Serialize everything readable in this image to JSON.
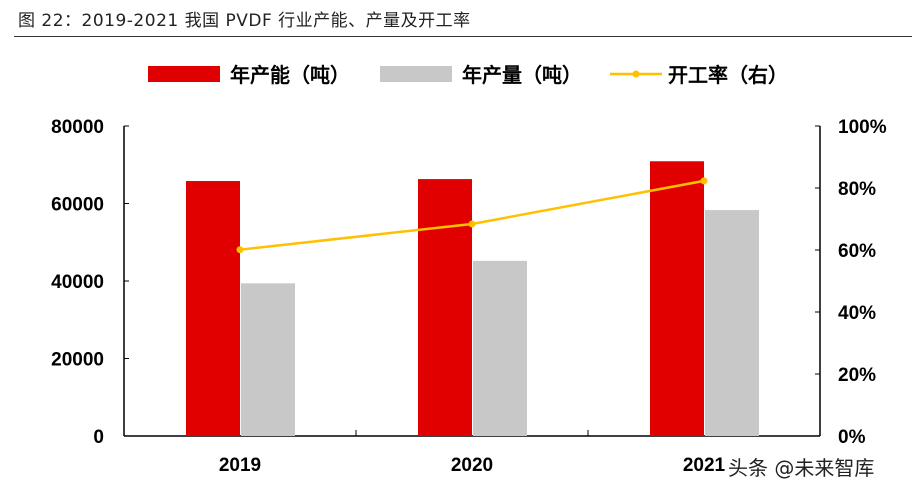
{
  "title": "图 22：2019-2021 我国 PVDF 行业产能、产量及开工率",
  "watermark": "头条 @未来智库",
  "chart_data": {
    "type": "bar",
    "categories": [
      "2019",
      "2020",
      "2021"
    ],
    "series": [
      {
        "name": "年产能（吨）",
        "type": "bar",
        "axis": "left",
        "color": "#E00000",
        "values": [
          65800,
          66300,
          70900
        ]
      },
      {
        "name": "年产量（吨）",
        "type": "bar",
        "axis": "left",
        "color": "#C8C8C8",
        "values": [
          39400,
          45200,
          58300
        ]
      },
      {
        "name": "开工率（右）",
        "type": "line",
        "axis": "right",
        "color": "#FFC000",
        "values": [
          60.1,
          68.4,
          82.3
        ]
      }
    ],
    "ylim": [
      0,
      80000
    ],
    "yticks": [
      "0",
      "20000",
      "40000",
      "60000",
      "80000"
    ],
    "y2lim": [
      0,
      100
    ],
    "y2ticks": [
      "0%",
      "20%",
      "40%",
      "60%",
      "80%",
      "100%"
    ],
    "legend": "top",
    "grid": false
  }
}
